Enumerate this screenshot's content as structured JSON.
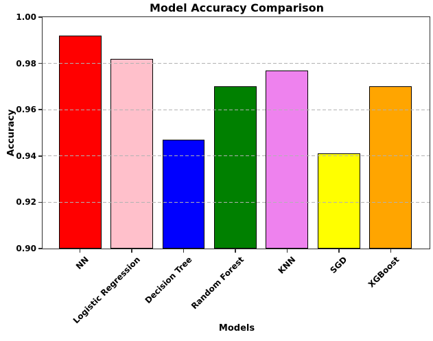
{
  "chart_data": {
    "type": "bar",
    "title": "Model Accuracy Comparison",
    "xlabel": "Models",
    "ylabel": "Accuracy",
    "categories": [
      "NN",
      "Logistic Regression",
      "Decision Tree",
      "Random Forest",
      "KNN",
      "SGD",
      "XGBoost"
    ],
    "values": [
      0.992,
      0.982,
      0.947,
      0.97,
      0.977,
      0.941,
      0.97
    ],
    "bar_colors": [
      "#ff0000",
      "#ffc0cb",
      "#0000ff",
      "#008000",
      "#ee82ee",
      "#ffff00",
      "#ffa500"
    ],
    "bar_edge_color": "#000000",
    "ylim": [
      0.9,
      1.0
    ],
    "yticks": [
      "0.90",
      "0.92",
      "0.94",
      "0.96",
      "0.98",
      "1.00"
    ],
    "grid": "horizontal dashed, drawn over bars",
    "grid_color": "#b0b0b0",
    "legend_position": "none"
  }
}
